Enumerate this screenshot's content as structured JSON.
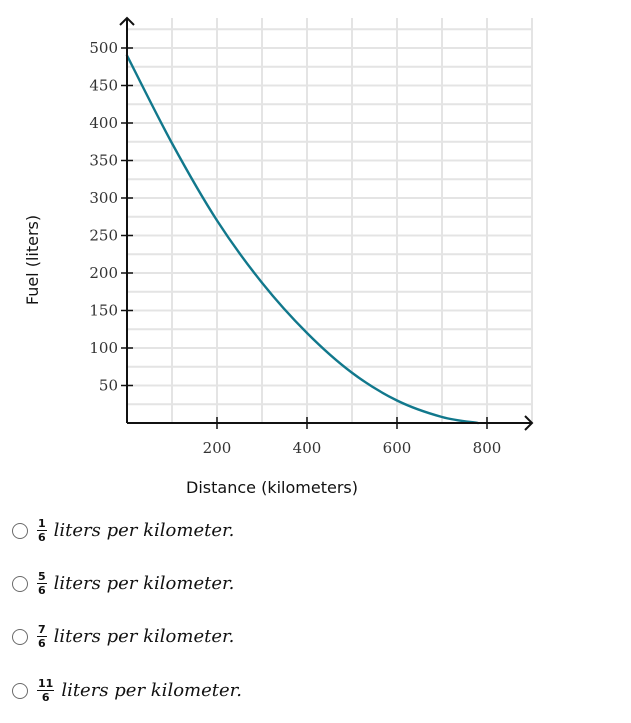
{
  "chart_data": {
    "type": "line",
    "title": "",
    "xlabel": "Distance (kilometers)",
    "ylabel": "Fuel (liters)",
    "xlim": [
      0,
      900
    ],
    "ylim": [
      0,
      540
    ],
    "x_ticks": [
      200,
      400,
      600,
      800
    ],
    "y_ticks": [
      50,
      100,
      150,
      200,
      250,
      300,
      350,
      400,
      450,
      500
    ],
    "x_grid_step": 100,
    "y_grid_step": 25,
    "grid": true,
    "series": [
      {
        "name": "fuel",
        "color": "#11788c",
        "x": [
          0,
          100,
          200,
          300,
          400,
          500,
          600,
          700,
          780
        ],
        "y": [
          490,
          373,
          270,
          187,
          120,
          67,
          30,
          8,
          0
        ]
      }
    ]
  },
  "options": [
    {
      "numerator": "1",
      "denominator": "6",
      "text": "liters per kilometer."
    },
    {
      "numerator": "5",
      "denominator": "6",
      "text": "liters per kilometer."
    },
    {
      "numerator": "7",
      "denominator": "6",
      "text": "liters per kilometer."
    },
    {
      "numerator": "11",
      "denominator": "6",
      "text": "liters per kilometer."
    }
  ]
}
